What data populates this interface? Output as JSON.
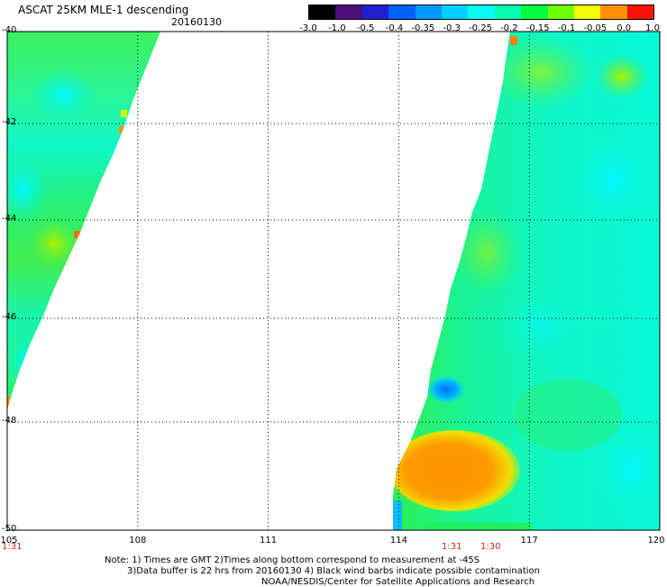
{
  "title": "ASCAT 25KM MLE-1 descending",
  "date": "20160130",
  "colorbar": {
    "labels": [
      "-3.0",
      "-1.0",
      "-0.5",
      "-0.4",
      "-0.35",
      "-0.3",
      "-0.25",
      "-0.2",
      "-0.15",
      "-0.1",
      "-0.05",
      "0.0",
      "1.0"
    ],
    "colors": [
      "#000000",
      "#4b0f78",
      "#2020d0",
      "#0060ff",
      "#0098ff",
      "#00d0ff",
      "#00ffee",
      "#00ffb0",
      "#00ff40",
      "#70ff00",
      "#f0ff00",
      "#ff9000",
      "#ff1000"
    ]
  },
  "axes": {
    "x_ticks": [
      "105",
      "108",
      "111",
      "114",
      "117",
      "120"
    ],
    "y_ticks": [
      "-40",
      "-42",
      "-44",
      "-46",
      "-48",
      "-50"
    ]
  },
  "times": [
    "1:31",
    "1:31",
    "1:30"
  ],
  "notes": [
    "Note: 1) Times are GMT 2)Times along bottom correspond to measurement at -45S",
    "3)Data buffer is 22 hrs from 20160130 4) Black wind barbs indicate possible contamination",
    "NOAA/NESDIS/Center for Satellite Applications and Research"
  ]
}
